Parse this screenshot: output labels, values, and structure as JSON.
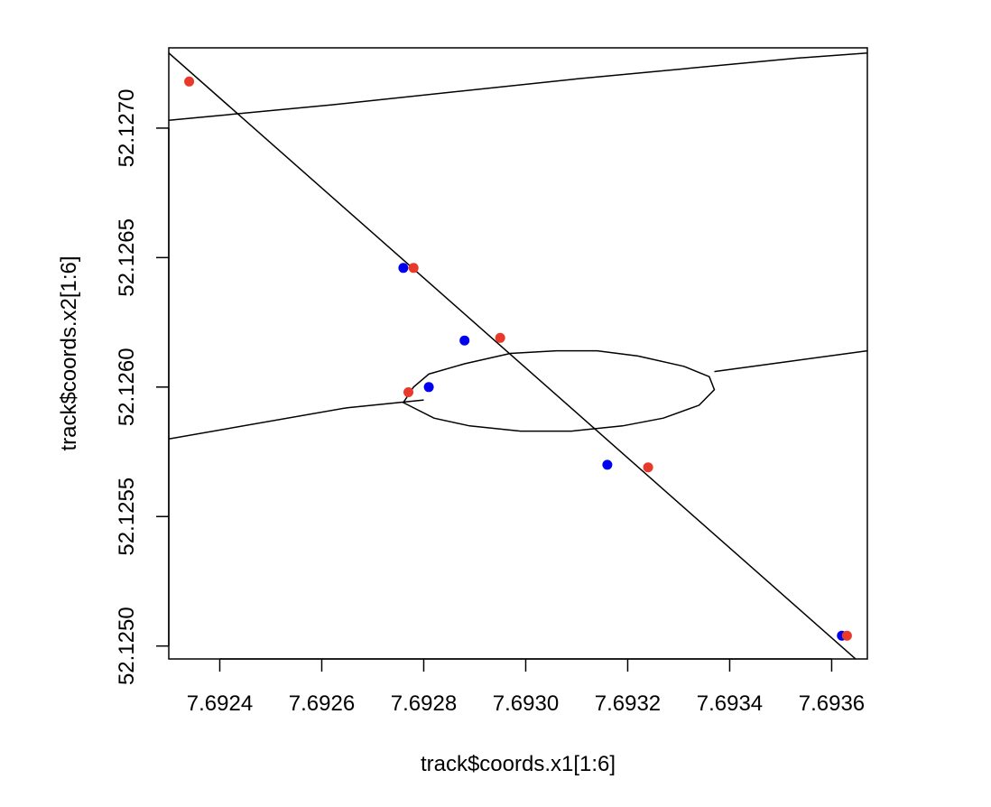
{
  "chart_data": {
    "type": "scatter",
    "title": "",
    "xlabel": "track$coords.x1[1:6]",
    "ylabel": "track$coords.x2[1:6]",
    "xlim": [
      7.6923,
      7.69367
    ],
    "ylim": [
      52.12495,
      52.12731
    ],
    "x_ticks": [
      7.6924,
      7.6926,
      7.6928,
      7.693,
      7.6932,
      7.6934,
      7.6936
    ],
    "x_tick_labels": [
      "7.6924",
      "7.6926",
      "7.6928",
      "7.6930",
      "7.6932",
      "7.6934",
      "7.6936"
    ],
    "y_ticks": [
      52.125,
      52.1255,
      52.126,
      52.1265,
      52.127
    ],
    "y_tick_labels": [
      "52.1250",
      "52.1255",
      "52.1260",
      "52.1265",
      "52.1270"
    ],
    "grid": false,
    "series": [
      {
        "color": "#0000ee",
        "points": [
          [
            7.69276,
            52.12646
          ],
          [
            7.69281,
            52.126
          ],
          [
            7.69288,
            52.12618
          ],
          [
            7.69316,
            52.1257
          ],
          [
            7.69362,
            52.12504
          ]
        ]
      },
      {
        "color": "#e8392a",
        "points": [
          [
            7.69234,
            52.12718
          ],
          [
            7.69278,
            52.12646
          ],
          [
            7.69295,
            52.12619
          ],
          [
            7.69277,
            52.12598
          ],
          [
            7.69324,
            52.12569
          ],
          [
            7.69363,
            52.12504
          ]
        ]
      }
    ],
    "lines": [
      {
        "color": "#000000",
        "points": [
          [
            7.6923,
            52.12729
          ],
          [
            7.69367,
            52.12491
          ]
        ]
      },
      {
        "color": "#000000",
        "points": [
          [
            7.6923,
            52.12703
          ],
          [
            7.69262,
            52.12709
          ],
          [
            7.6931,
            52.12719
          ],
          [
            7.69353,
            52.12727
          ],
          [
            7.69367,
            52.12729
          ]
        ]
      },
      {
        "color": "#000000",
        "points": [
          [
            7.6923,
            52.1258
          ],
          [
            7.69265,
            52.12592
          ],
          [
            7.6928,
            52.12595
          ]
        ]
      },
      {
        "color": "#000000",
        "points": [
          [
            7.69337,
            52.12606
          ],
          [
            7.69352,
            52.1261
          ],
          [
            7.69367,
            52.12614
          ]
        ]
      },
      {
        "color": "#000000",
        "closed": true,
        "points": [
          [
            7.69281,
            52.12605
          ],
          [
            7.69288,
            52.12609
          ],
          [
            7.69297,
            52.12613
          ],
          [
            7.69306,
            52.12614
          ],
          [
            7.69314,
            52.12614
          ],
          [
            7.69322,
            52.12612
          ],
          [
            7.69331,
            52.12608
          ],
          [
            7.69336,
            52.12604
          ],
          [
            7.69337,
            52.12599
          ],
          [
            7.69334,
            52.12593
          ],
          [
            7.69327,
            52.12588
          ],
          [
            7.69319,
            52.12585
          ],
          [
            7.69309,
            52.12583
          ],
          [
            7.69299,
            52.12583
          ],
          [
            7.69289,
            52.12585
          ],
          [
            7.69282,
            52.12588
          ],
          [
            7.69276,
            52.12594
          ],
          [
            7.69278,
            52.126
          ]
        ]
      }
    ]
  }
}
